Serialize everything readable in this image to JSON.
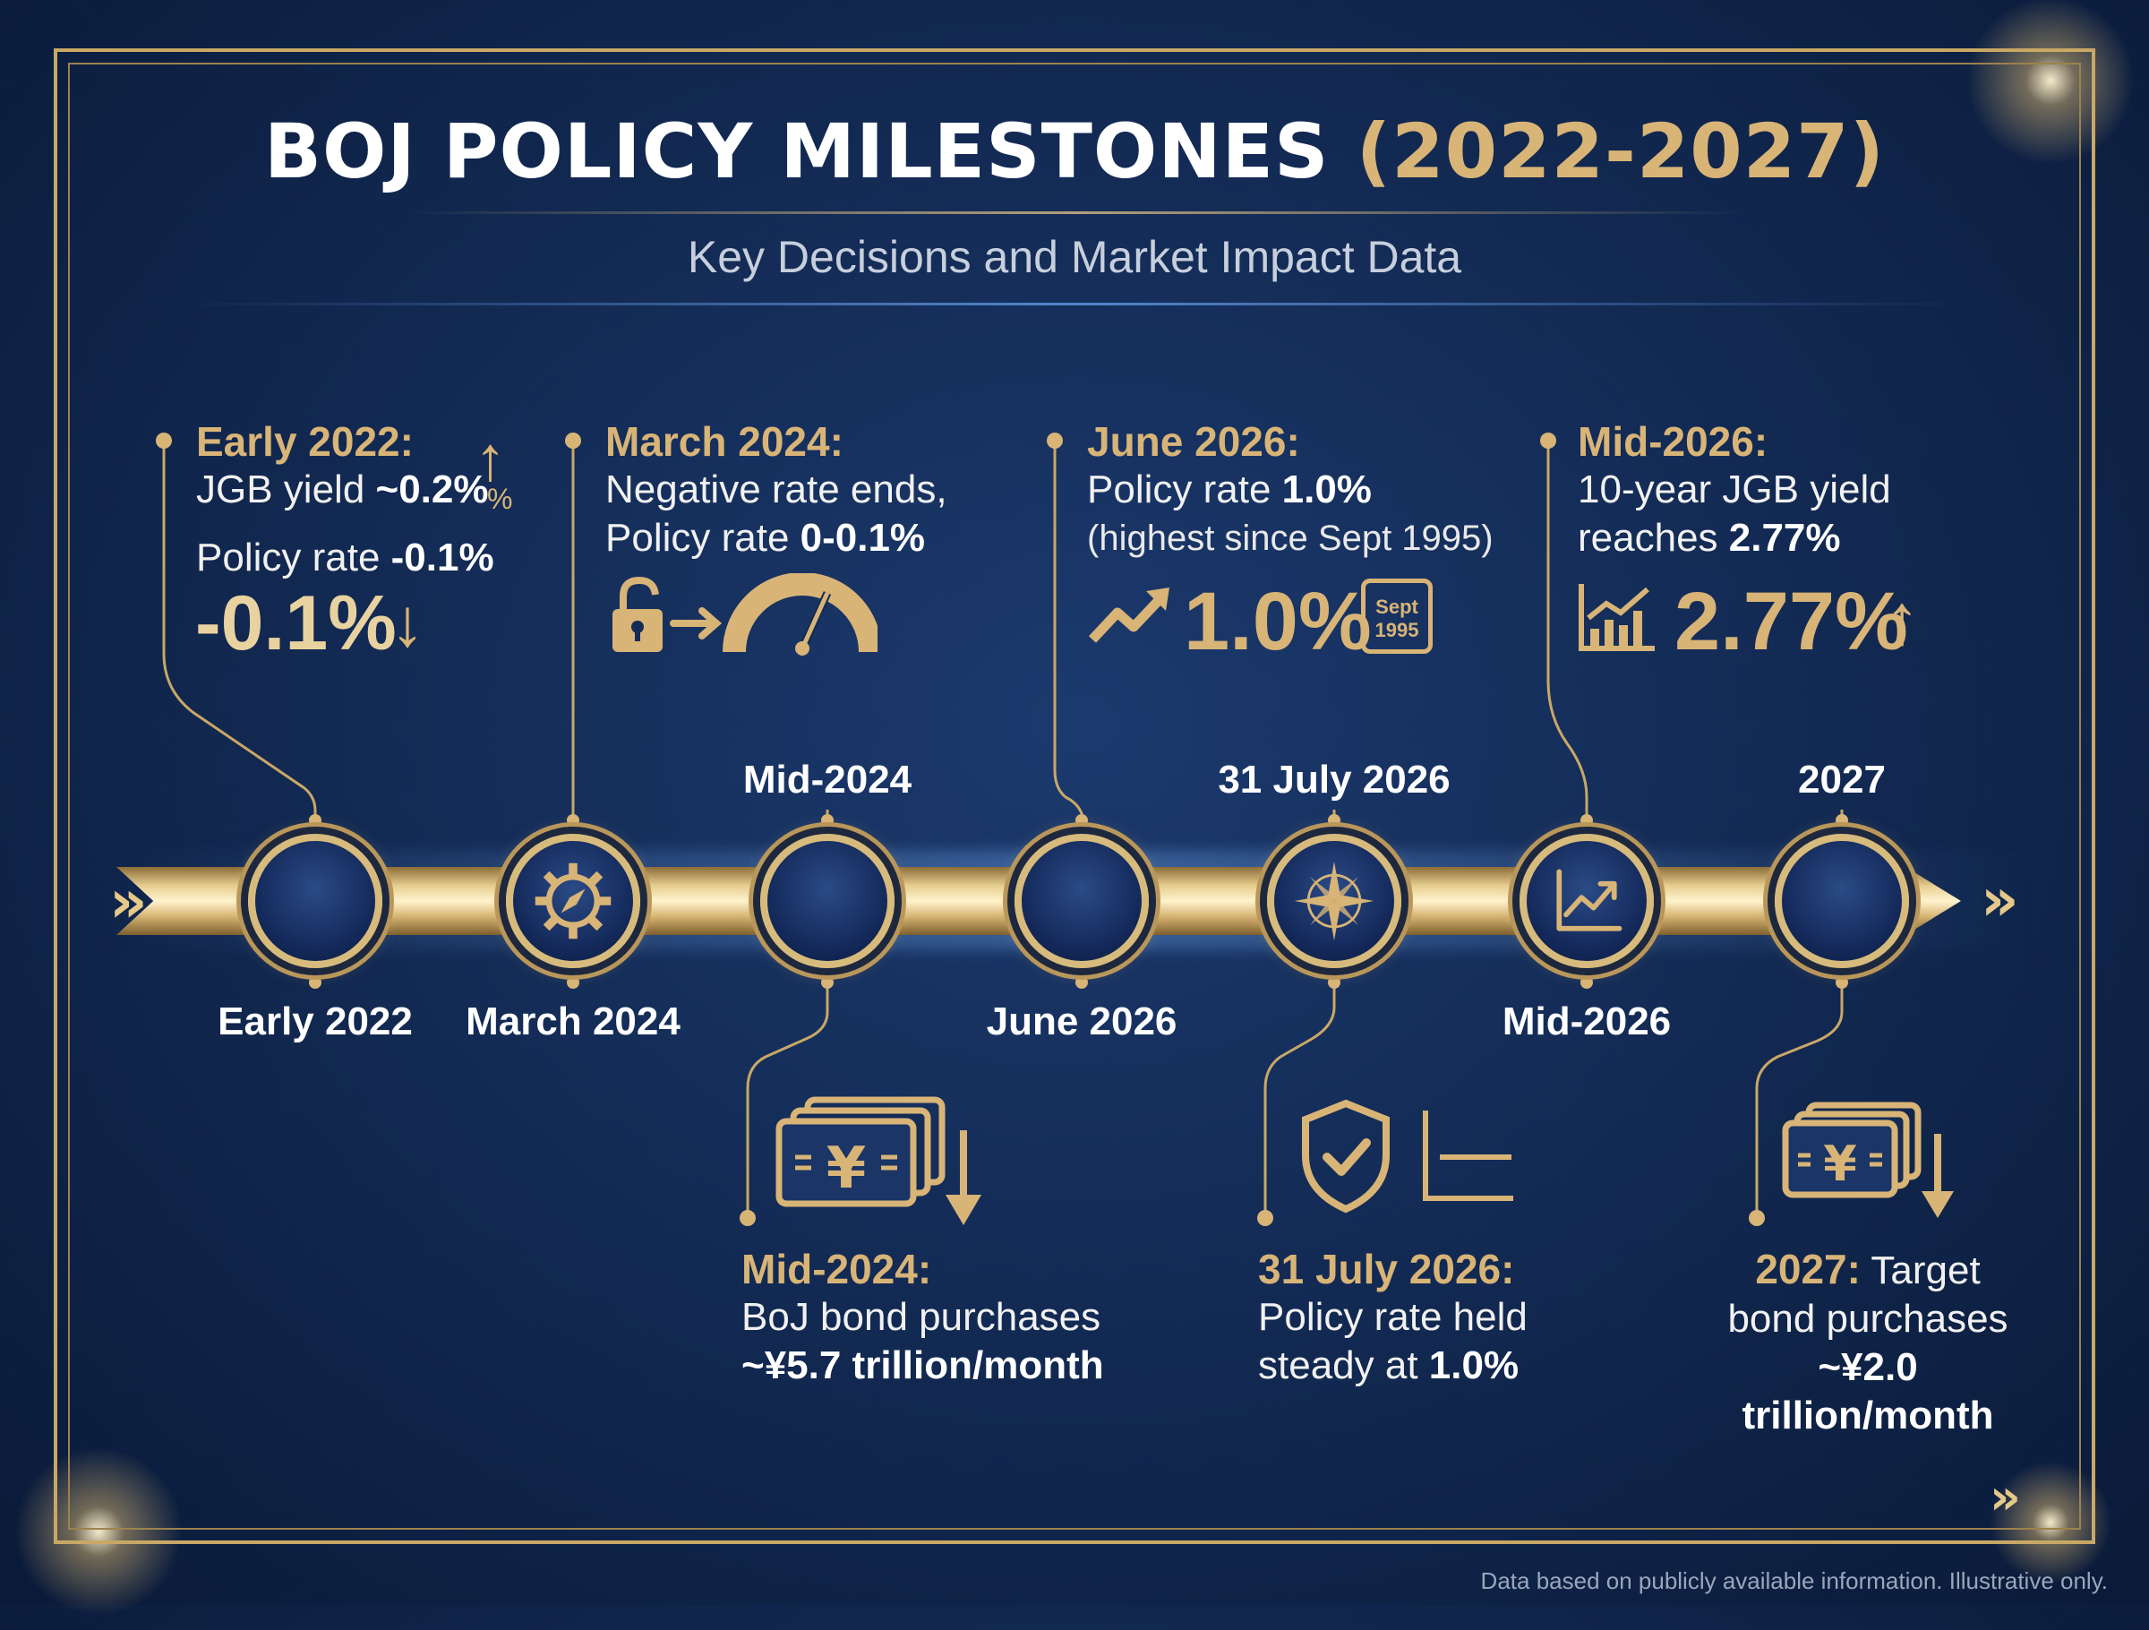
{
  "header": {
    "title_main": "BOJ POLICY MILESTONES",
    "title_years": "(2022-2027)",
    "subtitle": "Key Decisions and Market Impact Data"
  },
  "timeline": {
    "labels_below": [
      "Early 2022",
      "March 2024",
      "June 2026",
      "Mid-2026"
    ],
    "labels_above": [
      "Mid-2024",
      "31 July 2026",
      "2027"
    ]
  },
  "cards": {
    "early2022": {
      "heading": "Early 2022:",
      "line1_pre": "JGB yield ",
      "line1_bold": "~0.2%",
      "pct_icon": "%",
      "line2_pre": "Policy rate ",
      "line2_bold": "-0.1%",
      "big": "-0.1%",
      "big_arrow": "↓",
      "up_arrow": "↑"
    },
    "march2024": {
      "heading": "March 2024:",
      "line1": "Negative rate ends,",
      "line2_pre": "Policy rate ",
      "line2_bold": "0-0.1%"
    },
    "june2026": {
      "heading": "June 2026:",
      "line1_pre": "Policy rate ",
      "line1_bold": "1.0%",
      "line2": "(highest since Sept 1995)",
      "big": "1.0%",
      "cal_line1": "Sept",
      "cal_line2": "1995"
    },
    "mid2026": {
      "heading": "Mid-2026:",
      "line1": "10-year JGB yield",
      "line2_pre": "reaches ",
      "line2_bold": "2.77%",
      "big": "2.77%",
      "big_arrow": "↑"
    },
    "mid2024": {
      "heading": "Mid-2024:",
      "line1": "BoJ bond purchases",
      "line2_bold": "~¥5.7 trillion/month"
    },
    "july2026": {
      "heading": "31 July 2026:",
      "line1": "Policy rate held",
      "line2_pre": "steady at ",
      "line2_bold": "1.0%"
    },
    "y2027": {
      "heading": "2027:",
      "heading_rest": " Target",
      "line1": "bond purchases",
      "line2_bold": "~¥2.0 trillion/month"
    }
  },
  "icons": {
    "node1": "empty-node",
    "node2": "gear-compass-icon",
    "node3": "empty-node",
    "node4": "empty-node",
    "node5": "compass-rose-icon",
    "node6": "trend-chart-icon",
    "node7": "empty-node"
  },
  "colors": {
    "gold": "#d8b477",
    "navy": "#132b55",
    "white": "#ffffff"
  },
  "footer": "Data based on publicly available information. Illustrative only."
}
